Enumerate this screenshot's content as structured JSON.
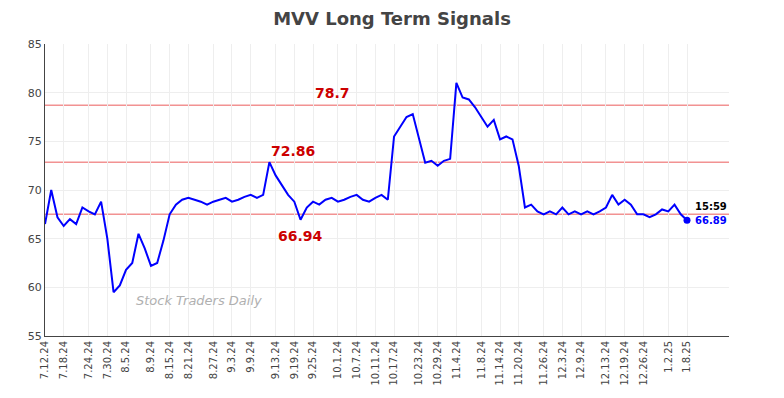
{
  "chart_data": {
    "type": "line",
    "title": "MVV Long Term Signals",
    "categories": [
      "7.12.24",
      null,
      null,
      "7.18.24",
      null,
      null,
      null,
      "7.24.24",
      null,
      null,
      "7.30.24",
      null,
      null,
      "8.5.24",
      null,
      null,
      null,
      "8.9.24",
      null,
      null,
      "8.15.24",
      null,
      null,
      "8.21.24",
      null,
      null,
      null,
      "8.27.24",
      null,
      null,
      "9.3.24",
      null,
      null,
      "9.9.24",
      null,
      null,
      null,
      "9.13.24",
      null,
      null,
      "9.19.24",
      null,
      null,
      "9.25.24",
      null,
      null,
      null,
      "10.1.24",
      null,
      null,
      "10.7.24",
      null,
      null,
      "10.11.24",
      null,
      null,
      "10.17.24",
      null,
      null,
      null,
      "10.23.24",
      null,
      null,
      "10.29.24",
      null,
      null,
      "11.4.24",
      null,
      null,
      null,
      "11.8.24",
      null,
      null,
      "11.14.24",
      null,
      null,
      "11.20.24",
      null,
      null,
      null,
      "11.26.24",
      null,
      null,
      "12.3.24",
      null,
      null,
      "12.9.24",
      null,
      null,
      null,
      "12.13.24",
      null,
      null,
      "12.19.24",
      null,
      null,
      "12.26.24",
      null,
      null,
      null,
      "1.2.25",
      null,
      null,
      "1.8.25"
    ],
    "values": [
      66.5,
      70.0,
      67.2,
      66.3,
      67.0,
      66.5,
      68.2,
      67.8,
      67.5,
      68.8,
      65.0,
      59.5,
      60.2,
      61.8,
      62.5,
      65.5,
      64.0,
      62.2,
      62.5,
      64.8,
      67.5,
      68.5,
      69.0,
      69.2,
      69.0,
      68.8,
      68.5,
      68.8,
      69.0,
      69.2,
      68.8,
      69.0,
      69.3,
      69.5,
      69.2,
      69.5,
      72.86,
      71.5,
      70.5,
      69.5,
      68.8,
      66.94,
      68.2,
      68.8,
      68.5,
      69.0,
      69.2,
      68.8,
      69.0,
      69.3,
      69.5,
      69.0,
      68.8,
      69.2,
      69.5,
      69.0,
      75.5,
      76.5,
      77.5,
      77.8,
      75.2,
      72.8,
      73.0,
      72.5,
      73.0,
      73.2,
      81.0,
      79.5,
      79.3,
      78.5,
      77.5,
      76.5,
      77.2,
      75.2,
      75.5,
      75.2,
      72.5,
      68.2,
      68.5,
      67.8,
      67.5,
      67.8,
      67.5,
      68.2,
      67.5,
      67.8,
      67.5,
      67.8,
      67.5,
      67.8,
      68.2,
      69.5,
      68.5,
      69.0,
      68.5,
      67.5,
      67.5,
      67.2,
      67.5,
      68.0,
      67.8,
      68.5,
      67.5,
      66.89
    ],
    "color": "blue",
    "ylim": [
      55,
      85
    ],
    "yticks": [
      55,
      60,
      65,
      70,
      75,
      80,
      85
    ],
    "grid": true,
    "hlines": [
      78.7,
      72.86,
      67.5
    ],
    "hline_color": "#f08080",
    "annotations": [
      {
        "text": "78.7",
        "x": 43,
        "y": 80.0,
        "color": "#cc0000"
      },
      {
        "text": "72.86",
        "x": 36,
        "y": 74.0,
        "color": "#cc0000"
      },
      {
        "text": "66.94",
        "x": 37,
        "y": 65.3,
        "color": "#cc0000"
      }
    ],
    "last_point": {
      "color": "blue",
      "label": "66.89",
      "top_label": "15:59",
      "top_color": "black"
    },
    "watermark": {
      "text": "Stock Traders Daily",
      "color": "#b0b0b0"
    }
  }
}
